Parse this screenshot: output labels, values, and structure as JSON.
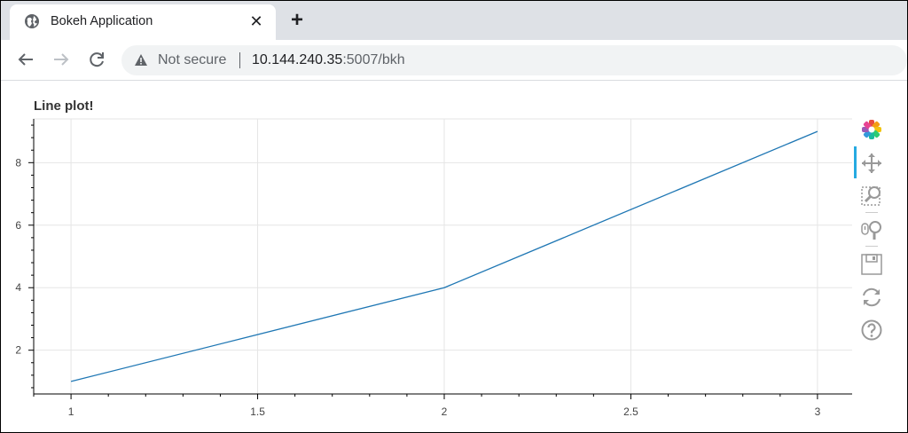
{
  "browser": {
    "tab_title": "Bokeh Application",
    "close_glyph": "✕",
    "new_tab_glyph": "+",
    "security_label": "Not secure",
    "url_host": "10.144.240.35",
    "url_rest": ":5007/bkh",
    "icons": [
      "globe-icon",
      "close-icon",
      "plus-icon",
      "back-arrow-icon",
      "forward-arrow-icon",
      "reload-icon",
      "warning-icon"
    ]
  },
  "plot": {
    "title": "Line plot!",
    "tools": [
      "bokeh-logo-icon",
      "pan-icon",
      "box-zoom-icon",
      "wheel-zoom-icon",
      "save-icon",
      "reset-icon",
      "help-icon"
    ],
    "line_color": "#1f77b4"
  },
  "chart_data": {
    "type": "line",
    "title": "Line plot!",
    "xlabel": "",
    "ylabel": "",
    "x": [
      1,
      2,
      3
    ],
    "series": [
      {
        "values": [
          1,
          4,
          9
        ]
      }
    ],
    "xlim": [
      0.9,
      3.1
    ],
    "ylim": [
      0.6,
      9.4
    ],
    "x_ticks": [
      1,
      1.5,
      2,
      2.5,
      3
    ],
    "x_tick_labels": [
      "1",
      "1.5",
      "2",
      "2.5",
      "3"
    ],
    "y_ticks": [
      2,
      4,
      6,
      8
    ],
    "y_tick_labels": [
      "2",
      "4",
      "6",
      "8"
    ],
    "grid": true,
    "legend": "none"
  }
}
